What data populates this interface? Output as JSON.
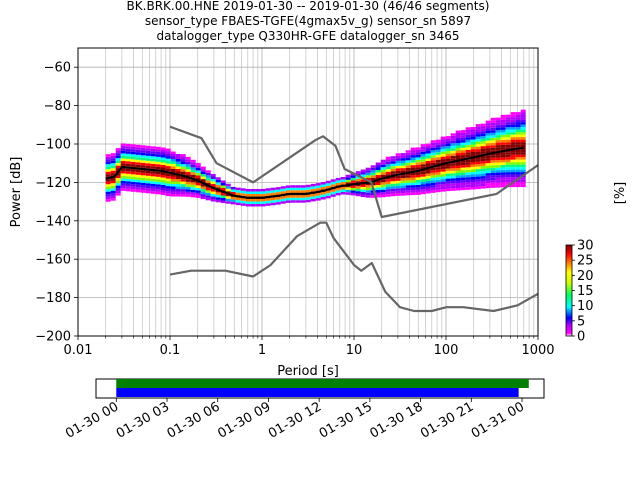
{
  "chart_data": {
    "type": "heatmap",
    "title_lines": [
      "BK.BRK.00.HNE   2019-01-30 -- 2019-01-30  (46/46 segments)",
      "sensor_type FBAES-TGFE(4gmax5v_g) sensor_sn 5897",
      "datalogger_type Q330HR-GFE datalogger_sn 3465"
    ],
    "xlabel": "Period [s]",
    "ylabel": "Power [dB]",
    "xscale": "log",
    "xlim": [
      0.01,
      1000
    ],
    "ylim": [
      -200,
      -50
    ],
    "x_ticks": [
      0.01,
      0.1,
      1,
      10,
      100,
      1000
    ],
    "x_tick_labels": [
      "0.01",
      "0.1",
      "1",
      "10",
      "100",
      "1000"
    ],
    "y_ticks": [
      -200,
      -180,
      -160,
      -140,
      -120,
      -100,
      -80,
      -60
    ],
    "y_tick_labels": [
      "−200",
      "−180",
      "−160",
      "−140",
      "−120",
      "−100",
      "−80",
      "−60"
    ],
    "grid": true,
    "colorbar": {
      "label": "[%]",
      "range": [
        0,
        30
      ],
      "ticks": [
        0,
        5,
        10,
        15,
        20,
        25,
        30
      ],
      "tick_labels": [
        "0",
        "5",
        "10",
        "15",
        "20",
        "25",
        "30"
      ]
    },
    "series": [
      {
        "role": "mode",
        "points": [
          [
            0.02,
            -118
          ],
          [
            0.025,
            -117
          ],
          [
            0.03,
            -112
          ],
          [
            0.05,
            -113
          ],
          [
            0.08,
            -114
          ],
          [
            0.1,
            -115
          ],
          [
            0.15,
            -117
          ],
          [
            0.2,
            -119
          ],
          [
            0.3,
            -123
          ],
          [
            0.5,
            -127
          ],
          [
            0.7,
            -128
          ],
          [
            1,
            -128
          ],
          [
            1.5,
            -127
          ],
          [
            2,
            -126
          ],
          [
            3,
            -126
          ],
          [
            4,
            -125
          ],
          [
            5,
            -124
          ],
          [
            7,
            -122
          ],
          [
            10,
            -121
          ],
          [
            15,
            -120
          ],
          [
            20,
            -118
          ],
          [
            30,
            -116
          ],
          [
            50,
            -114
          ],
          [
            70,
            -112
          ],
          [
            100,
            -110
          ],
          [
            200,
            -107
          ],
          [
            300,
            -105
          ],
          [
            500,
            -103
          ],
          [
            700,
            -102
          ]
        ]
      },
      {
        "role": "high noise model",
        "points": [
          [
            0.1,
            -91
          ],
          [
            0.22,
            -97
          ],
          [
            0.32,
            -110
          ],
          [
            0.8,
            -120
          ],
          [
            3.8,
            -98
          ],
          [
            4.6,
            -96
          ],
          [
            6.3,
            -101
          ],
          [
            7.9,
            -113
          ],
          [
            15.4,
            -120
          ],
          [
            20,
            -138
          ],
          [
            354.8,
            -126
          ],
          [
            1000,
            -111
          ]
        ]
      },
      {
        "role": "low noise model",
        "points": [
          [
            0.1,
            -168
          ],
          [
            0.17,
            -166
          ],
          [
            0.4,
            -166
          ],
          [
            0.8,
            -169
          ],
          [
            1.24,
            -163
          ],
          [
            2.4,
            -148
          ],
          [
            4.3,
            -141
          ],
          [
            5,
            -141
          ],
          [
            6,
            -149
          ],
          [
            10,
            -163
          ],
          [
            12,
            -166
          ],
          [
            15.6,
            -162
          ],
          [
            21.9,
            -177
          ],
          [
            31.6,
            -185
          ],
          [
            45,
            -187
          ],
          [
            70,
            -187
          ],
          [
            101,
            -185
          ],
          [
            154,
            -185
          ],
          [
            328,
            -187
          ],
          [
            600,
            -184
          ],
          [
            1000,
            -178
          ]
        ]
      }
    ],
    "timeline": {
      "tick_labels": [
        "01-30 00",
        "01-30 03",
        "01-30 06",
        "01-30 09",
        "01-30 12",
        "01-30 15",
        "01-30 18",
        "01-30 21",
        "01-31 00"
      ],
      "hours": [
        0,
        3,
        6,
        9,
        12,
        15,
        18,
        21,
        24
      ],
      "range_hours": [
        -1.2,
        25.3
      ],
      "bars": [
        {
          "color": "#008000",
          "start_hour": 0,
          "end_hour": 24.4
        },
        {
          "color": "#0000ff",
          "start_hour": 0,
          "end_hour": 23.8
        }
      ]
    }
  }
}
